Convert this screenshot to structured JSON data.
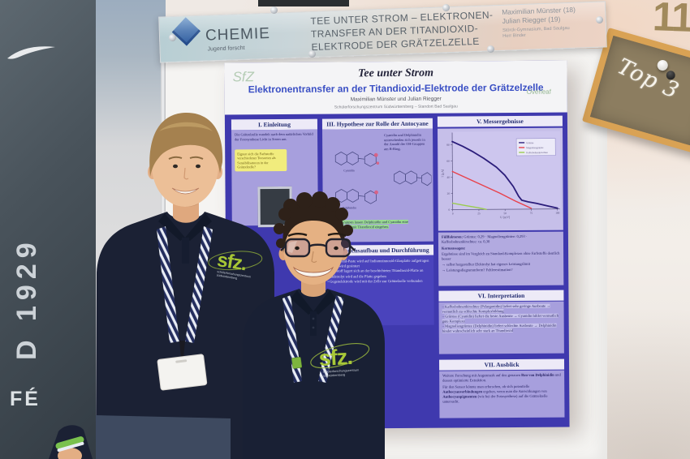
{
  "left_panel": {
    "vertical_text": "D 1929",
    "bottom_text": "FÉ"
  },
  "stand_number": "11",
  "banner": {
    "org_name": "CHEMIE",
    "org_sub": "Jugend forscht",
    "title_line1": "TEE UNTER STROM – ELEKTRONEN-",
    "title_line2": "TRANSFER AN DER TITANDIOXID-",
    "title_line3": "ELEKTRODE DER GRÄTZELZELLE",
    "participant1": "Maximilian Münster (18)",
    "participant2": "Julian Riegger (19)",
    "school": "Störck-Gymnasium, Bad Saulgau",
    "supervisor": "Herr Binder"
  },
  "award_board": {
    "text": "Top 3"
  },
  "poster": {
    "header": {
      "title": "Tee unter Strom",
      "subtitle": "Elektronentransfer an der Titandioxid-Elektrode der Grätzelzelle",
      "authors": "Maximilian Münster und Julian Riegger",
      "institution": "Schülerforschungszentrum Südwürttemberg – Standort Bad Saulgau",
      "logo_left": "SfZ",
      "logo_right": "Overleaf"
    },
    "sections": {
      "s1": {
        "title": "I. Einleitung",
        "intro": "Die Grätzelzelle wandelt nach dem natürlichen Vorbild der Fotosynthese Licht in Strom um.",
        "note": "Eignen sich die Farbstoffe verschiedener Teesorten als Sensibilisatoren in der Grätzelzelle?"
      },
      "s3": {
        "title": "III. Hypothese zur Rolle der Antocyane",
        "paragraph": "Cyanidin und Delphinidin unterscheiden sich jeweils in der Anzahl der OH-Gruppen am B-Ring.",
        "mol1": "Cyanidin",
        "mol2": "Delphinidin",
        "footnote": "Mehr OH-Gruppen lassen Delphinidin und Cyanidin eine Komplexbindung mit Titandioxid eingehen."
      },
      "s4": {
        "title": "IV. Versuchsaufbau und Durchführung",
        "bullets": [
          "Titandioxid-Paste wird auf Indiumzinnoxid-Glasplatte aufgetragen",
          "Platte wird gesintert",
          "Farbstoff lagert sich an der beschichteten Titandioxid-Platte an",
          "Elektrolyt wird auf die Platte gegeben",
          "Gegenelektrode wird mit der Zelle zur Grätzelzelle verbunden"
        ]
      },
      "s5": {
        "title": "V. Messergebnisse",
        "fill_label": "Füllfaktoren:",
        "fill_values": "Grüntee: 0,29 · Magnoliengrüntee: 0,293 · Kaffeebohnenkirschtee: ca. 0,30",
        "key_label": "Kernaussagen:",
        "keys": [
          "Ergebnisse sind im Vergleich zu Standard-Komplexen ohne Farbstoffe deutlich besser",
          "→ selbst hergestellter Elektrolyt hat eigenes Leistungslimit",
          "→ Leistungsdiagrammform? Fehlerestimation?"
        ]
      },
      "s6": {
        "title": "VI. Interpretation",
        "bullets": [
          "Kaffeebohnenkirschtee (Pelargonidin) liefert sehr geringe Ausbeute → vermutlich zu schlechte Komplexbildung",
          "Grüntee (Cyanidin) liefert die beste Ausbeute → Cyanidin bildet vermutlich gute Komplexe",
          "Magnoliengrüntee (Delphinidin) liefert schlechte Ausbeute → Delphinidin bindet wahrscheinlich sehr stark an Titandioxid"
        ]
      },
      "s7": {
        "title": "VII. Ausblick",
        "line1a": "Weitere Forschung mit Augenmerk auf den genauen",
        "line1b": "Bau von Delphinidin",
        "line1c": "und dessen optimierte Extraktion.",
        "line2a": "Für den Sensor könnte man erforschen, ob sich potentielle",
        "line2b": "Anthocyanverbindungen",
        "line2c": "ergeben, wenn man die Auswirkungen von",
        "line2d": "Anthocyanpigmenten",
        "line2e": "(wie bei der Fotosynthese) auf die Grätzelzelle untersucht."
      }
    }
  },
  "chart_data": {
    "type": "line",
    "title": "V. Messergebnisse",
    "xlabel": "U [mV]",
    "ylabel": "I [µA]",
    "xlim": [
      0,
      100
    ],
    "ylim": [
      0,
      90
    ],
    "x_ticks": [
      0,
      25,
      50,
      75,
      100
    ],
    "y_ticks": [
      0,
      20,
      40,
      60,
      80
    ],
    "grid": false,
    "legend_position": "top-right",
    "series": [
      {
        "name": "Grüntee",
        "color": "#2b1d7a",
        "x": [
          0,
          10,
          20,
          30,
          42,
          50,
          58,
          63,
          66,
          72,
          80,
          90,
          100
        ],
        "y": [
          84,
          78,
          71,
          63,
          52,
          42,
          28,
          16,
          11,
          9,
          7,
          4,
          1
        ]
      },
      {
        "name": "Magnoliengrüntee",
        "color": "#e8414b",
        "x": [
          0,
          15,
          30,
          45,
          60,
          75
        ],
        "y": [
          47,
          38,
          29,
          20,
          10,
          1
        ]
      },
      {
        "name": "Kaffeebohnenkirschtee",
        "color": "#9acc4f",
        "x": [
          0,
          12,
          25,
          32
        ],
        "y": [
          8,
          5,
          2,
          0
        ]
      }
    ]
  },
  "people": {
    "left": {
      "shirt_logo": "sfz.",
      "shirt_sub1": "schülerforschungszentrum",
      "shirt_sub2": "südwürttemberg"
    },
    "right": {
      "shirt_logo": "sfz.",
      "shirt_sub1": "schülerforschungszentrum",
      "shirt_sub2": "südwürttemberg"
    }
  }
}
